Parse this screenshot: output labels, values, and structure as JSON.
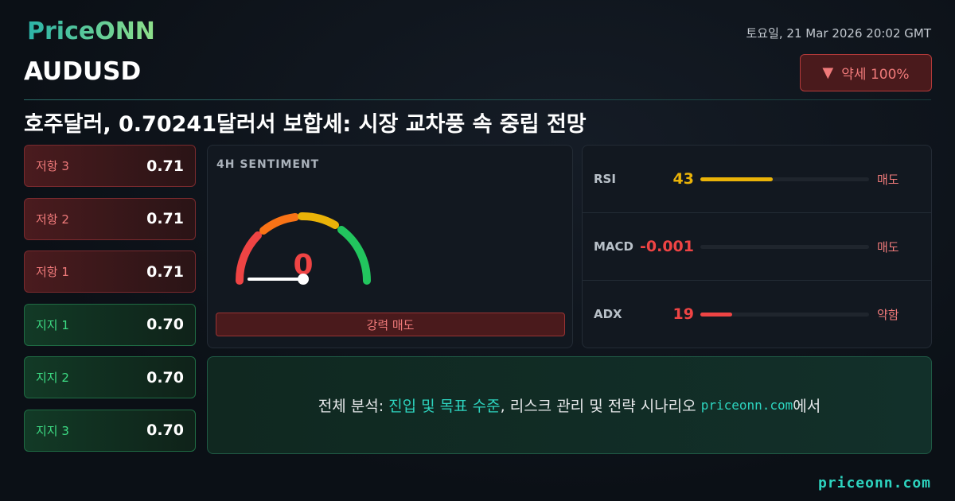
{
  "header": {
    "logo": "PriceONN",
    "datetime": "토요일, 21 Mar 2026 20:02 GMT",
    "symbol": "AUDUSD",
    "badge": "약세 100%",
    "headline": "호주달러, 0.70241달러서 보합세: 시장 교차풍 속 중립 전망"
  },
  "levels": [
    {
      "label": "저항 3",
      "value": "0.71",
      "kind": "resistance"
    },
    {
      "label": "저항 2",
      "value": "0.71",
      "kind": "resistance"
    },
    {
      "label": "저항 1",
      "value": "0.71",
      "kind": "resistance"
    },
    {
      "label": "지지 1",
      "value": "0.70",
      "kind": "support"
    },
    {
      "label": "지지 2",
      "value": "0.70",
      "kind": "support"
    },
    {
      "label": "지지 3",
      "value": "0.70",
      "kind": "support"
    }
  ],
  "sentiment": {
    "title": "4H SENTIMENT",
    "value": 0,
    "verdict": "강력 매도"
  },
  "indicators": [
    {
      "name": "RSI",
      "value": 43,
      "color": "#eab308",
      "signal": "매도"
    },
    {
      "name": "MACD",
      "value": -0.001,
      "color": "#ef4444",
      "signal": "매도"
    },
    {
      "name": "ADX",
      "value": 19,
      "color": "#ef4444",
      "signal": "약함"
    }
  ],
  "cta": {
    "lead": "전체 분석: ",
    "highlight": "진입 및 목표 수준",
    "middle": ", 리스크 관리 및 전략 시나리오 ",
    "site": "priceonn.com",
    "tail": "에서"
  },
  "footer": {
    "site": "priceonn.com"
  }
}
